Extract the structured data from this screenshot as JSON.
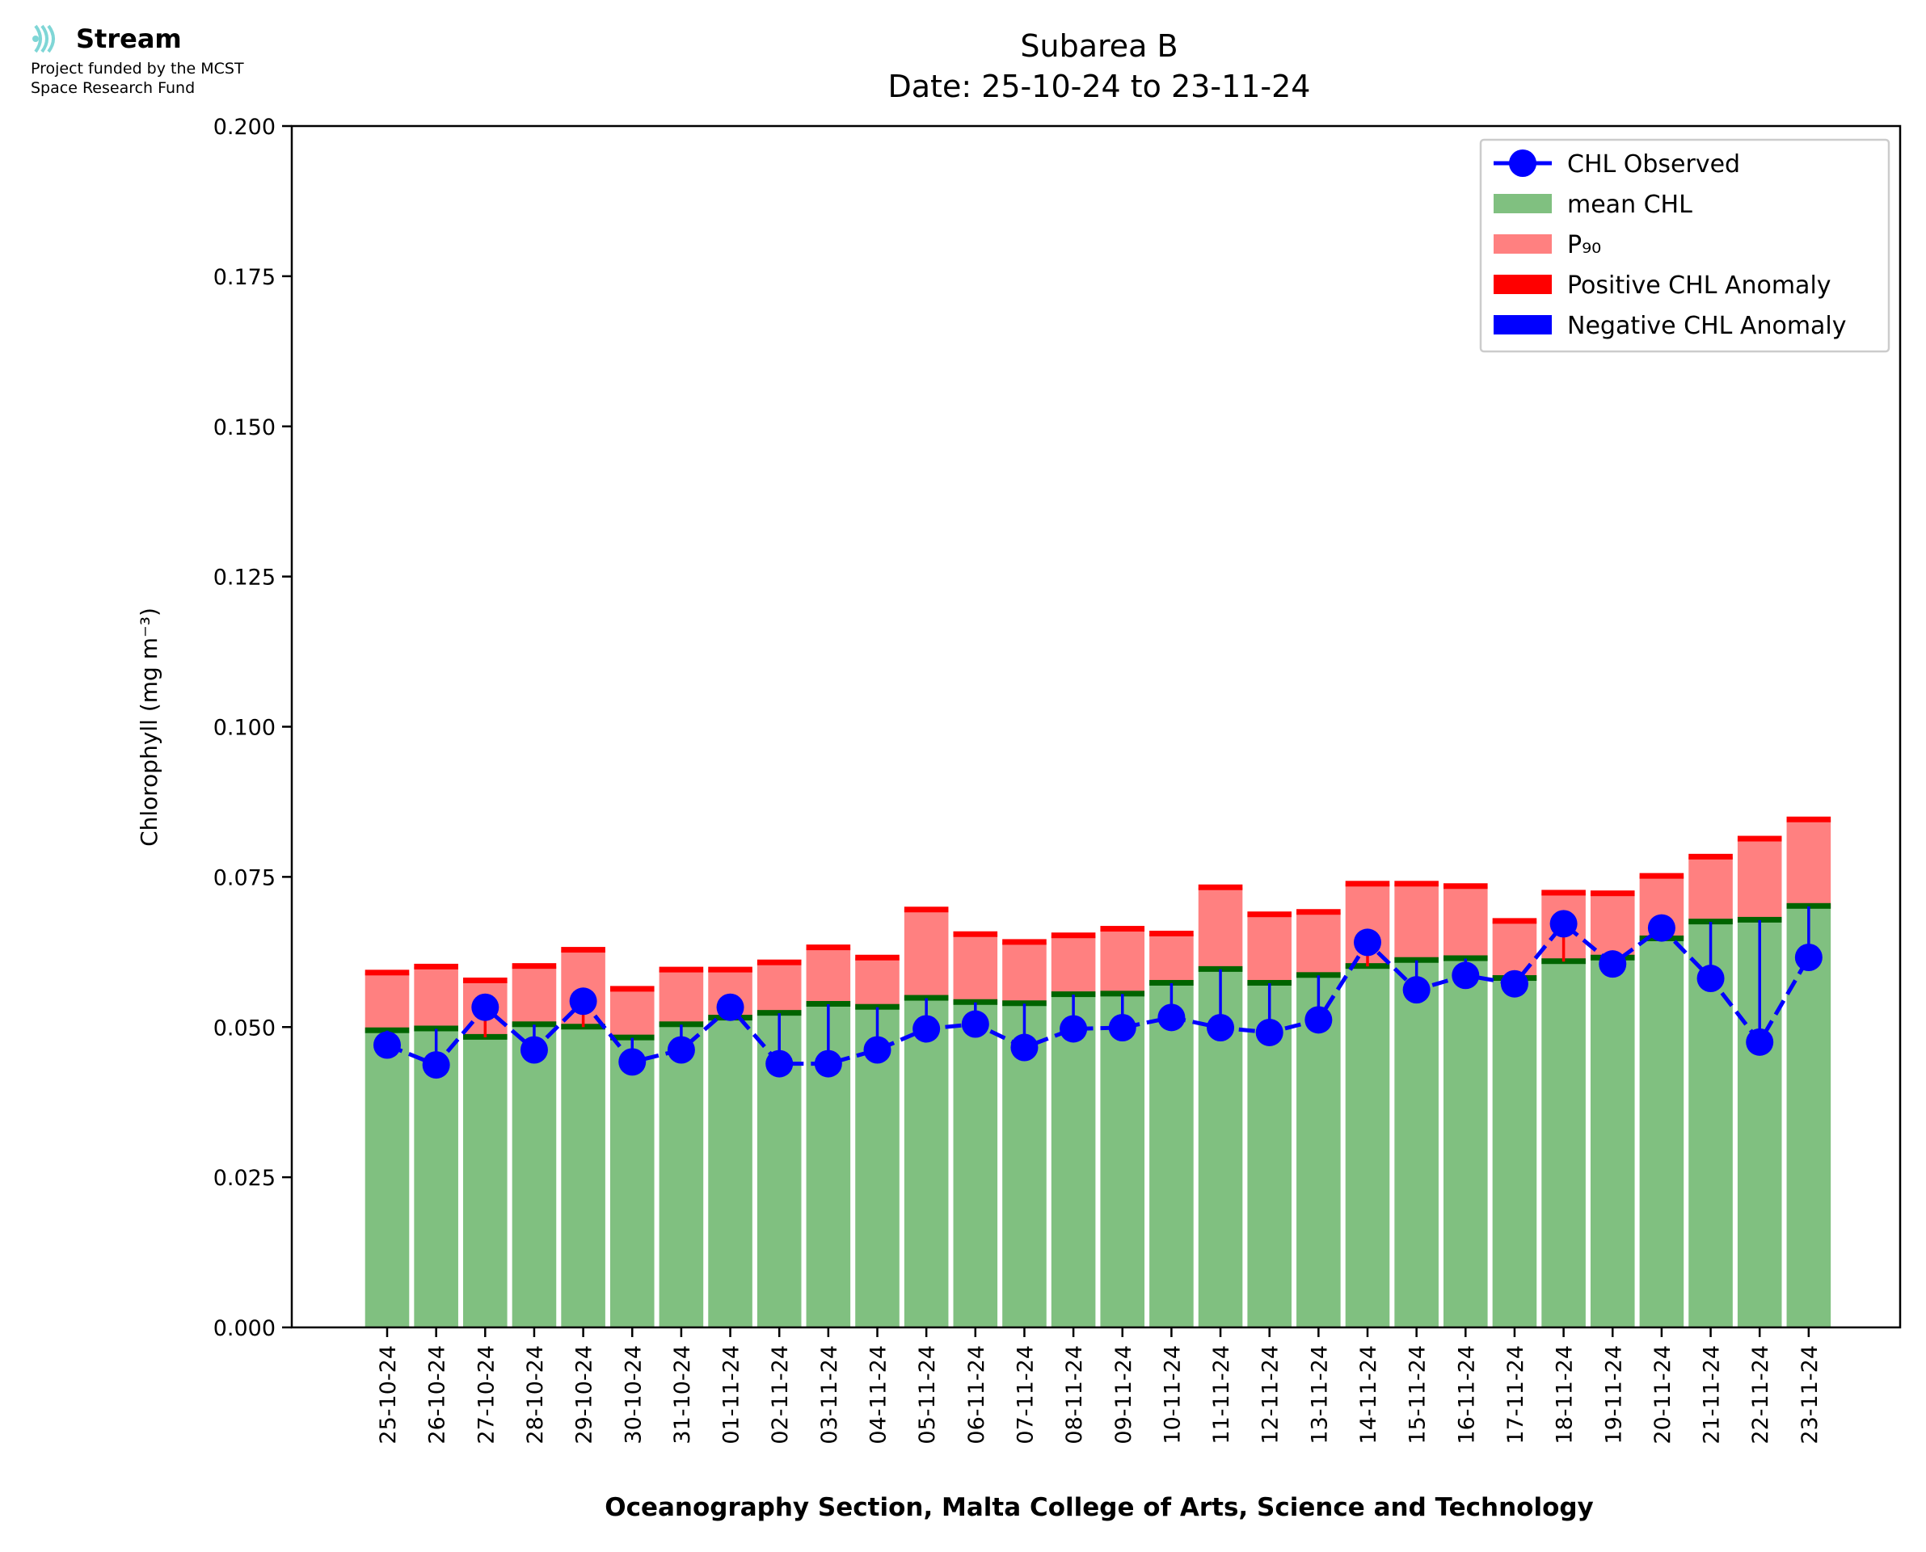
{
  "logo": {
    "name": "Stream",
    "line1": "Project funded by the MCST",
    "line2": "Space Research Fund"
  },
  "chart_data": {
    "type": "bar",
    "title": "Subarea B",
    "subtitle": "Date: 25-10-24 to 23-11-24",
    "xlabel": "Oceanography Section, Malta College of Arts, Science and Technology",
    "ylabel": "Chlorophyll (mg m⁻³)",
    "ylim": [
      0,
      0.2
    ],
    "yticks": [
      "0.000",
      "0.025",
      "0.050",
      "0.075",
      "0.100",
      "0.125",
      "0.150",
      "0.175",
      "0.200"
    ],
    "ytick_values": [
      0,
      0.025,
      0.05,
      0.075,
      0.1,
      0.125,
      0.15,
      0.175,
      0.2
    ],
    "grid": false,
    "legend_position": "top-right",
    "categories": [
      "25-10-24",
      "26-10-24",
      "27-10-24",
      "28-10-24",
      "29-10-24",
      "30-10-24",
      "31-10-24",
      "01-11-24",
      "02-11-24",
      "03-11-24",
      "04-11-24",
      "05-11-24",
      "06-11-24",
      "07-11-24",
      "08-11-24",
      "09-11-24",
      "10-11-24",
      "11-11-24",
      "12-11-24",
      "13-11-24",
      "14-11-24",
      "15-11-24",
      "16-11-24",
      "17-11-24",
      "18-11-24",
      "19-11-24",
      "20-11-24",
      "21-11-24",
      "22-11-24",
      "23-11-24"
    ],
    "series": [
      {
        "name": "CHL Observed",
        "type": "line",
        "color": "#0000ff",
        "values": [
          0.047,
          0.0437,
          0.0533,
          0.0462,
          0.0543,
          0.0442,
          0.0462,
          0.0533,
          0.0439,
          0.0439,
          0.0462,
          0.0497,
          0.0505,
          0.0466,
          0.0497,
          0.0499,
          0.0516,
          0.0499,
          0.0491,
          0.0512,
          0.0641,
          0.0562,
          0.0586,
          0.0572,
          0.0672,
          0.0605,
          0.0665,
          0.0581,
          0.0475,
          0.0616
        ]
      },
      {
        "name": "mean CHL",
        "type": "bar",
        "color": "#80c080",
        "values": [
          0.0494,
          0.0497,
          0.0483,
          0.0504,
          0.05,
          0.0482,
          0.0504,
          0.0515,
          0.0523,
          0.0538,
          0.0533,
          0.0548,
          0.0541,
          0.0539,
          0.0554,
          0.0555,
          0.0573,
          0.0596,
          0.0573,
          0.0586,
          0.0601,
          0.0611,
          0.0614,
          0.0581,
          0.0609,
          0.0615,
          0.0647,
          0.0675,
          0.0678,
          0.0701
        ]
      },
      {
        "name": "P₉₀",
        "type": "bar",
        "color": "#ff8080",
        "values": [
          0.059,
          0.06,
          0.0577,
          0.0601,
          0.0628,
          0.0563,
          0.0595,
          0.0595,
          0.0607,
          0.0632,
          0.0615,
          0.0695,
          0.0654,
          0.0641,
          0.0652,
          0.0663,
          0.0655,
          0.0732,
          0.0687,
          0.0691,
          0.0738,
          0.0738,
          0.0734,
          0.0676,
          0.0723,
          0.0722,
          0.0751,
          0.0783,
          0.0813,
          0.0845
        ]
      }
    ],
    "legend": [
      {
        "label": "CHL Observed",
        "kind": "line-marker",
        "color": "#0000ff"
      },
      {
        "label": "mean CHL",
        "kind": "patch",
        "color": "#80c080"
      },
      {
        "label": "P₉₀",
        "kind": "patch",
        "color": "#ff8080"
      },
      {
        "label": "Positive CHL Anomaly",
        "kind": "patch",
        "color": "#ff0000"
      },
      {
        "label": "Negative CHL Anomaly",
        "kind": "patch",
        "color": "#0000ff"
      }
    ],
    "colors": {
      "mean_line": "#006400",
      "p90_line": "#ff0000",
      "positive_anomaly": "#ff0000",
      "negative_anomaly": "#0000ff"
    }
  }
}
